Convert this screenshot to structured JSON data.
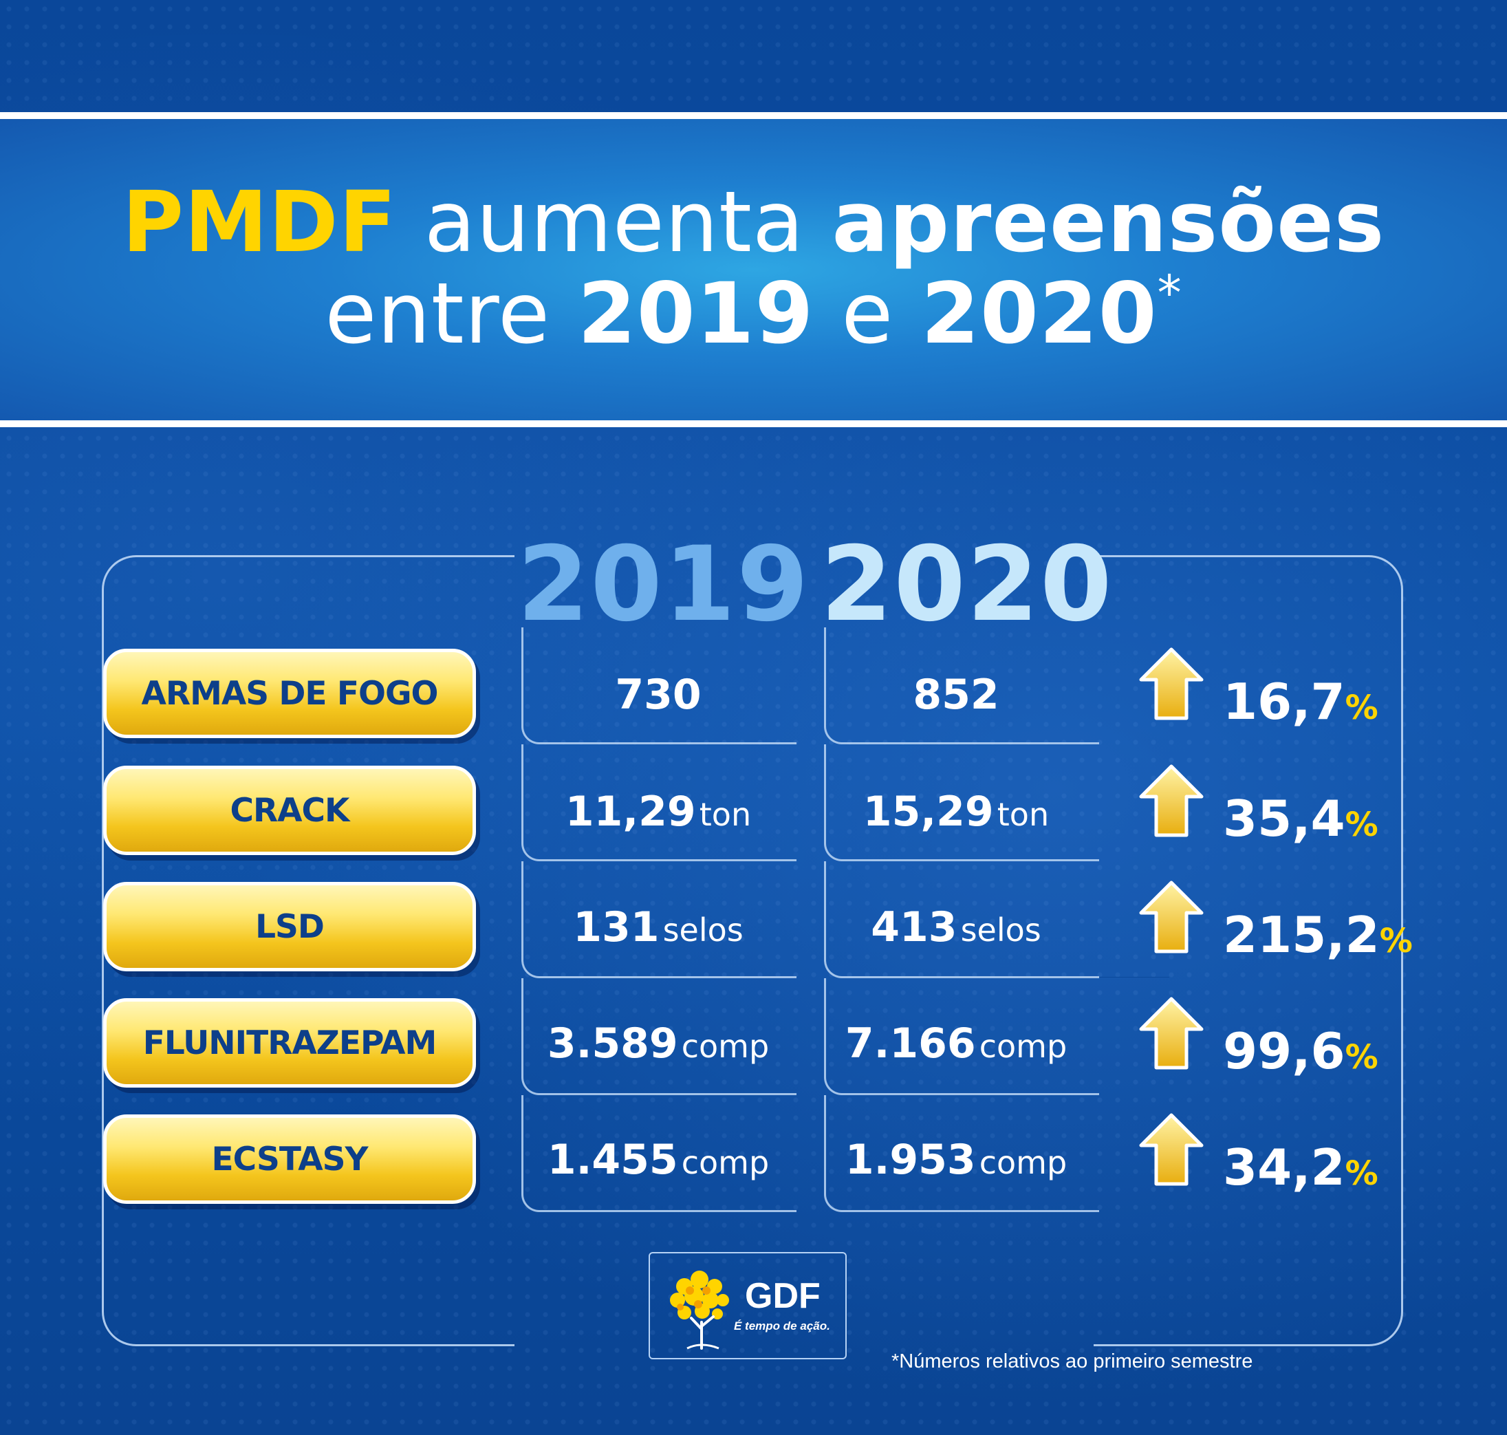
{
  "title": {
    "line1_brand": "PMDF",
    "line1_mid": "aumenta",
    "line1_end": "apreensões",
    "line2_start": "entre",
    "line2_year1": "2019",
    "line2_conj": "e",
    "line2_year2": "2020",
    "line2_mark": "*"
  },
  "columns": {
    "year1": "2019",
    "year2": "2020"
  },
  "rows": [
    {
      "label": "ARMAS DE FOGO",
      "v2019": "730",
      "u2019": "",
      "v2020": "852",
      "u2020": "",
      "pct": "16,7",
      "pct_sign": "%"
    },
    {
      "label": "CRACK",
      "v2019": "11,29",
      "u2019": "ton",
      "v2020": "15,29",
      "u2020": "ton",
      "pct": "35,4",
      "pct_sign": "%"
    },
    {
      "label": "LSD",
      "v2019": "131",
      "u2019": "selos",
      "v2020": "413",
      "u2020": "selos",
      "pct": "215,2",
      "pct_sign": "%"
    },
    {
      "label": "FLUNITRAZEPAM",
      "v2019": "3.589",
      "u2019": "comp",
      "v2020": "7.166",
      "u2020": "comp",
      "pct": "99,6",
      "pct_sign": "%"
    },
    {
      "label": "ECSTASY",
      "v2019": "1.455",
      "u2019": "comp",
      "v2020": "1.953",
      "u2020": "comp",
      "pct": "34,2",
      "pct_sign": "%"
    }
  ],
  "logo": {
    "name": "GDF",
    "slogan": "É tempo de ação."
  },
  "footnote": "*Números relativos ao primeiro semestre",
  "colors": {
    "accent_yellow": "#ffd400",
    "navy": "#0d3f8a",
    "background": "#0d4b9c"
  }
}
